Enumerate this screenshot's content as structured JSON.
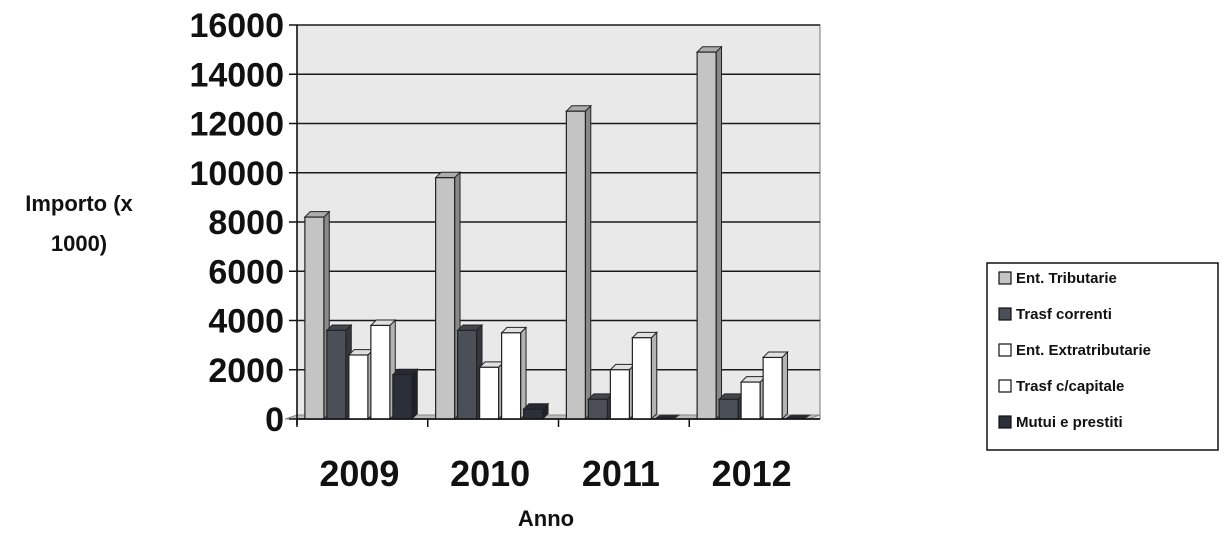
{
  "chart_data": {
    "type": "bar",
    "title": "",
    "xlabel": "Anno",
    "ylabel_lines": [
      "Importo (x",
      "1000)"
    ],
    "categories": [
      "2009",
      "2010",
      "2011",
      "2012"
    ],
    "ylim": [
      0,
      16000
    ],
    "yticks": [
      "0",
      "2000",
      "4000",
      "6000",
      "8000",
      "10000",
      "12000",
      "14000",
      "16000"
    ],
    "grid": true,
    "legend_position": "right",
    "series": [
      {
        "name": "Ent. Tributarie",
        "values": [
          8200,
          9800,
          12500,
          14900
        ],
        "color": "#c4c4c4"
      },
      {
        "name": "Trasf correnti",
        "values": [
          3600,
          3600,
          800,
          800
        ],
        "color": "#4a4f58"
      },
      {
        "name": "Ent. Extratributarie",
        "values": [
          2600,
          2100,
          2000,
          1500
        ],
        "color": "#ffffff"
      },
      {
        "name": "Trasf c/capitale",
        "values": [
          3800,
          3500,
          3300,
          2500
        ],
        "color": "#ffffff"
      },
      {
        "name": "Mutui e prestiti",
        "values": [
          1800,
          400,
          0,
          0
        ],
        "color": "#2b2f3a"
      }
    ]
  }
}
